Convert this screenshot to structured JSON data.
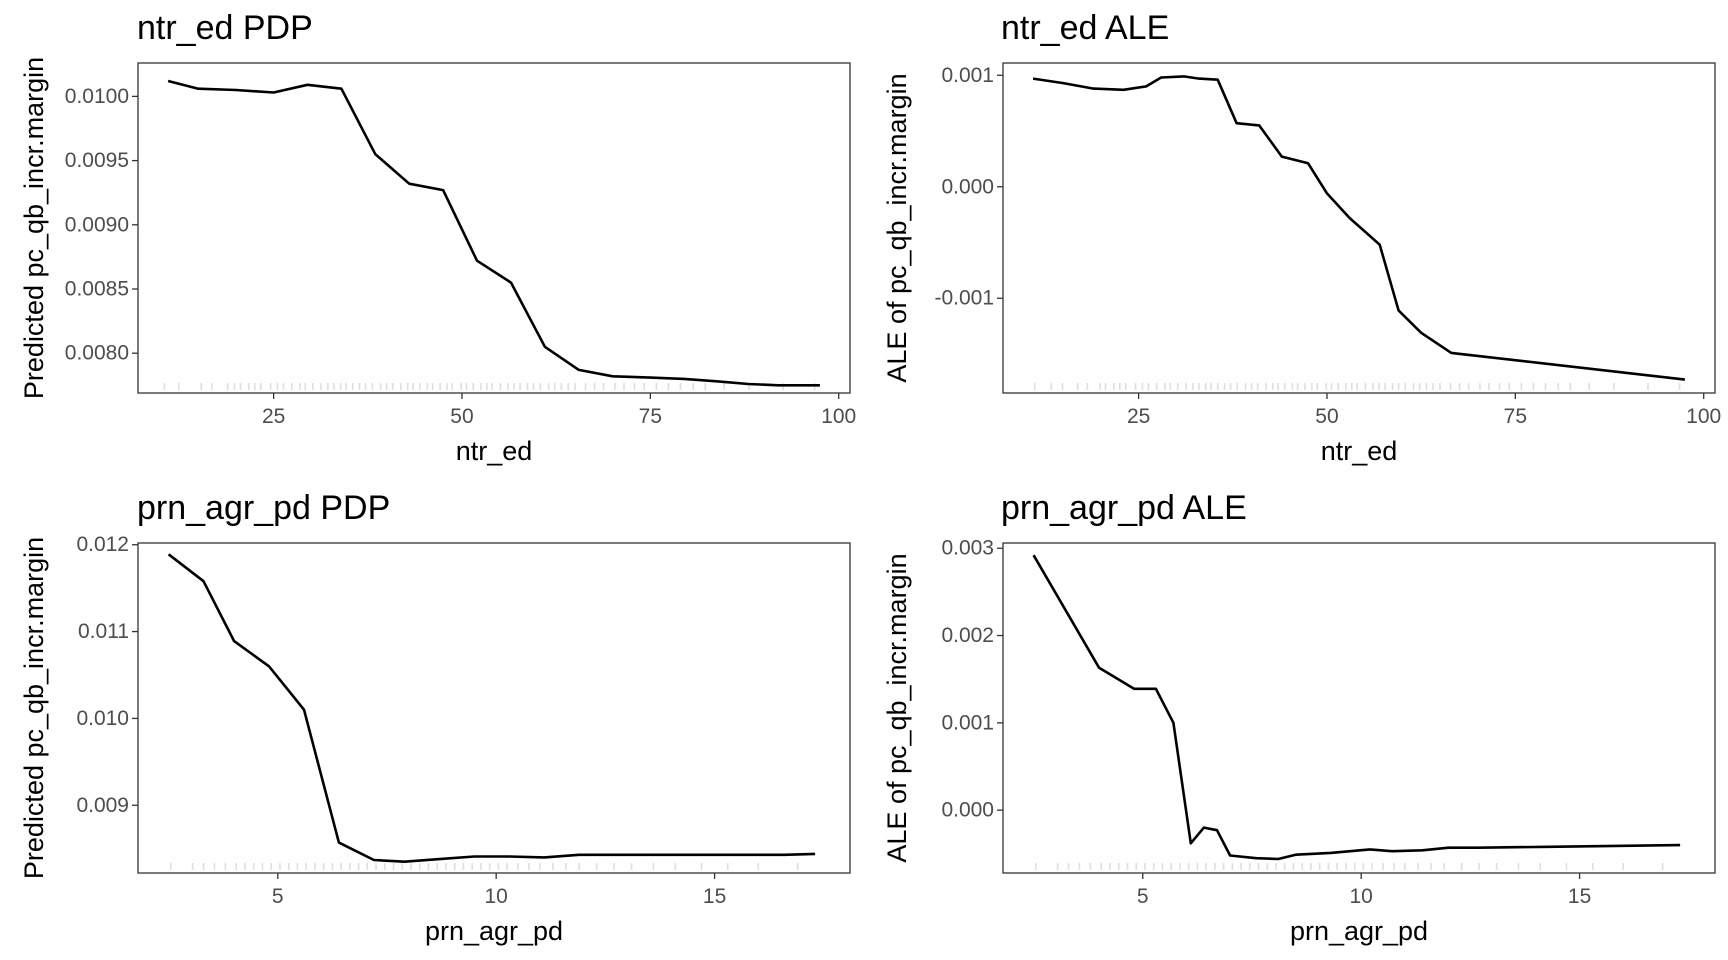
{
  "chart_data": [
    {
      "type": "line",
      "title": "ntr_ed PDP",
      "xlabel": "ntr_ed",
      "ylabel": "Predicted pc_qb_incr.margin",
      "xlim": [
        7,
        101.5
      ],
      "ylim": [
        0.00769,
        0.01026
      ],
      "xticks": [
        25,
        50,
        75,
        100
      ],
      "xtick_labels": [
        "25",
        "50",
        "75",
        "100"
      ],
      "yticks": [
        0.008,
        0.0085,
        0.009,
        0.0095,
        0.01
      ],
      "ytick_labels": [
        "0.0080",
        "0.0085",
        "0.0090",
        "0.0095",
        "0.0100"
      ],
      "grid": false,
      "legend": "none",
      "series": [
        {
          "x": [
            11,
            15,
            20,
            25,
            29.5,
            34,
            38.5,
            43,
            47.5,
            52,
            56.5,
            61,
            65.5,
            70,
            75,
            79.5,
            84,
            88,
            92,
            97.5
          ],
          "y": [
            0.01012,
            0.01006,
            0.01005,
            0.01003,
            0.01009,
            0.01006,
            0.00955,
            0.00932,
            0.00927,
            0.00872,
            0.00855,
            0.00805,
            0.00787,
            0.00782,
            0.00781,
            0.0078,
            0.00778,
            0.00776,
            0.00775,
            0.00775
          ]
        }
      ],
      "rug": [
        10.5,
        12.4,
        15.4,
        16.8,
        18.9,
        19.8,
        20.6,
        21.7,
        22.5,
        23.3,
        24.6,
        25.5,
        26.3,
        27.4,
        28.5,
        29.2,
        30.2,
        31.3,
        32.2,
        33.0,
        33.9,
        34.6,
        35.5,
        36.4,
        37.2,
        38.1,
        39.2,
        40.0,
        40.8,
        41.9,
        42.8,
        43.5,
        44.4,
        45.4,
        46.1,
        47.1,
        48.0,
        48.7,
        49.9,
        50.6,
        51.5,
        52.5,
        53.3,
        54.0,
        55.1,
        56.1,
        56.9,
        57.7,
        58.7,
        59.5,
        60.4,
        61.5,
        62.3,
        63.2,
        64.1,
        65.0,
        66.4,
        67.6,
        68.8,
        70.3,
        71.5,
        72.9,
        74.2,
        75.8,
        77.4,
        79.0,
        80.7,
        82.3,
        84.8,
        88.1,
        92.6,
        96.8
      ]
    },
    {
      "type": "line",
      "title": "ntr_ed ALE",
      "xlabel": "ntr_ed",
      "ylabel": "ALE of pc_qb_incr.margin",
      "xlim": [
        7,
        101.5
      ],
      "ylim": [
        -0.00185,
        0.00111
      ],
      "xticks": [
        25,
        50,
        75,
        100
      ],
      "xtick_labels": [
        "25",
        "50",
        "75",
        "100"
      ],
      "yticks": [
        -0.001,
        0,
        0.001
      ],
      "ytick_labels": [
        "-0.001",
        "0.000",
        "0.001"
      ],
      "grid": false,
      "legend": "none",
      "series": [
        {
          "x": [
            11,
            15,
            19,
            23,
            26,
            28,
            31,
            33,
            35.5,
            38,
            41,
            44,
            47.5,
            50,
            53,
            57,
            59.5,
            62.5,
            66.5,
            97.5
          ],
          "y": [
            0.00097,
            0.00093,
            0.00088,
            0.00087,
            0.0009,
            0.00098,
            0.00099,
            0.00097,
            0.00096,
            0.00057,
            0.00055,
            0.00027,
            0.00021,
            -6e-05,
            -0.00028,
            -0.00052,
            -0.00111,
            -0.00131,
            -0.00149,
            -0.00173
          ]
        }
      ],
      "rug": [
        11.2,
        13.4,
        14.9,
        16.9,
        18.2,
        19.9,
        20.6,
        21.7,
        22.5,
        23.3,
        24.6,
        25.5,
        26.3,
        27.4,
        28.5,
        29.2,
        30.2,
        31.3,
        32.2,
        33.0,
        33.9,
        34.6,
        35.5,
        36.4,
        37.2,
        38.1,
        39.2,
        40.0,
        40.8,
        41.9,
        42.8,
        43.5,
        44.4,
        45.4,
        46.1,
        47.1,
        48.0,
        48.7,
        49.9,
        50.6,
        51.5,
        52.5,
        53.3,
        54.0,
        55.1,
        56.1,
        56.9,
        57.7,
        58.7,
        59.5,
        60.4,
        61.5,
        62.3,
        63.2,
        64.1,
        65.0,
        66.4,
        67.6,
        68.8,
        70.3,
        71.5,
        72.9,
        74.2,
        75.8,
        77.4,
        79.0,
        80.7,
        82.3,
        84.8,
        88.1,
        92.6,
        96.8
      ]
    },
    {
      "type": "line",
      "title": "prn_agr_pd PDP",
      "xlabel": "prn_agr_pd",
      "ylabel": "Predicted pc_qb_incr.margin",
      "xlim": [
        1.8,
        18.1
      ],
      "ylim": [
        0.00822,
        0.01202
      ],
      "xticks": [
        5,
        10,
        15
      ],
      "xtick_labels": [
        "5",
        "10",
        "15"
      ],
      "yticks": [
        0.009,
        0.01,
        0.011,
        0.012
      ],
      "ytick_labels": [
        "0.009",
        "0.010",
        "0.011",
        "0.012"
      ],
      "grid": false,
      "legend": "none",
      "series": [
        {
          "x": [
            2.5,
            3.3,
            4.0,
            4.8,
            5.6,
            6.4,
            7.2,
            7.9,
            8.7,
            9.5,
            10.3,
            11.1,
            11.9,
            12.7,
            13.4,
            14.2,
            15.0,
            15.8,
            16.6,
            17.3
          ],
          "y": [
            0.01189,
            0.01158,
            0.01089,
            0.0106,
            0.0101,
            0.00857,
            0.00837,
            0.00835,
            0.00838,
            0.00841,
            0.00841,
            0.0084,
            0.00843,
            0.00843,
            0.00843,
            0.00843,
            0.00843,
            0.00843,
            0.00843,
            0.00844
          ]
        }
      ],
      "rug": [
        2.55,
        3.05,
        3.3,
        3.55,
        3.8,
        4.05,
        4.25,
        4.45,
        4.65,
        4.85,
        5.05,
        5.25,
        5.45,
        5.65,
        5.85,
        6.05,
        6.25,
        6.45,
        6.65,
        6.85,
        7.05,
        7.25,
        7.45,
        7.65,
        7.85,
        8.05,
        8.25,
        8.45,
        8.65,
        8.85,
        9.05,
        9.25,
        9.45,
        9.65,
        9.85,
        10.05,
        10.25,
        10.5,
        10.75,
        11.0,
        11.3,
        11.6,
        11.9,
        12.3,
        12.7,
        13.1,
        13.6,
        14.1,
        14.7,
        15.3,
        16.0,
        16.9
      ]
    },
    {
      "type": "line",
      "title": "prn_agr_pd ALE",
      "xlabel": "prn_agr_pd",
      "ylabel": "ALE of pc_qb_incr.margin",
      "xlim": [
        1.8,
        18.1
      ],
      "ylim": [
        -0.00072,
        0.00306
      ],
      "xticks": [
        5,
        10,
        15
      ],
      "xtick_labels": [
        "5",
        "10",
        "15"
      ],
      "yticks": [
        0,
        0.001,
        0.002,
        0.003
      ],
      "ytick_labels": [
        "0.000",
        "0.001",
        "0.002",
        "0.003"
      ],
      "grid": false,
      "legend": "none",
      "series": [
        {
          "x": [
            2.5,
            4.0,
            4.8,
            5.3,
            5.7,
            6.1,
            6.4,
            6.7,
            7.0,
            7.6,
            8.1,
            8.5,
            9.3,
            10.2,
            10.7,
            11.4,
            12.0,
            12.7,
            14.3,
            17.3
          ],
          "y": [
            0.00292,
            0.00163,
            0.00139,
            0.00139,
            0.001,
            -0.00038,
            -0.0002,
            -0.00023,
            -0.00052,
            -0.00055,
            -0.00056,
            -0.00051,
            -0.00049,
            -0.00045,
            -0.00047,
            -0.00046,
            -0.00043,
            -0.00043,
            -0.00042,
            -0.0004
          ]
        }
      ],
      "rug": [
        2.55,
        3.05,
        3.3,
        3.55,
        3.8,
        4.05,
        4.25,
        4.45,
        4.65,
        4.85,
        5.05,
        5.25,
        5.45,
        5.65,
        5.85,
        6.05,
        6.25,
        6.45,
        6.65,
        6.85,
        7.05,
        7.25,
        7.45,
        7.65,
        7.85,
        8.05,
        8.25,
        8.45,
        8.65,
        8.85,
        9.05,
        9.25,
        9.45,
        9.65,
        9.85,
        10.05,
        10.25,
        10.5,
        10.75,
        11.0,
        11.3,
        11.6,
        11.9,
        12.3,
        12.7,
        13.1,
        13.6,
        14.1,
        14.7,
        15.3,
        16.0,
        16.9
      ]
    }
  ]
}
